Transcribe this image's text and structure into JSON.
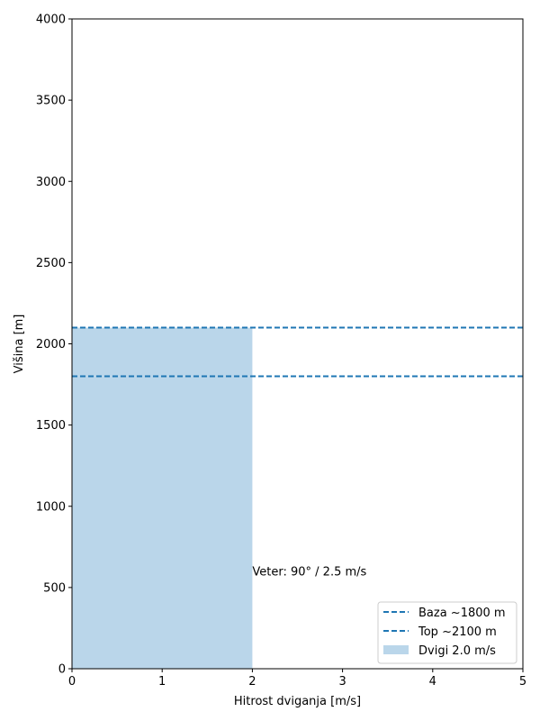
{
  "chart_data": {
    "type": "area",
    "title": "",
    "xlabel": "Hitrost dviganja [m/s]",
    "ylabel": "Višina [m]",
    "xlim": [
      0,
      5
    ],
    "ylim": [
      0,
      4000
    ],
    "xticks": [
      "0",
      "1",
      "2",
      "3",
      "4",
      "5"
    ],
    "yticks": [
      "0",
      "500",
      "1000",
      "1500",
      "2000",
      "2500",
      "3000",
      "3500",
      "4000"
    ],
    "grid": false,
    "legend_position": "lower-right",
    "lift_fill": {
      "name": "Dvigi 2.0 m/s",
      "x_from": 0,
      "x_to": 2.0,
      "y_from": 0,
      "y_to": 2100,
      "color": "#bad6ea"
    },
    "hlines": [
      {
        "name": "Baza ~1800 m",
        "y": 1800,
        "color": "#1f77b4",
        "style": "dashed"
      },
      {
        "name": "Top ~2100 m",
        "y": 2100,
        "color": "#1f77b4",
        "style": "dashed"
      }
    ],
    "annotation": {
      "text": "Veter: 90° / 2.5 m/s",
      "x": 2.0,
      "y": 600
    }
  }
}
